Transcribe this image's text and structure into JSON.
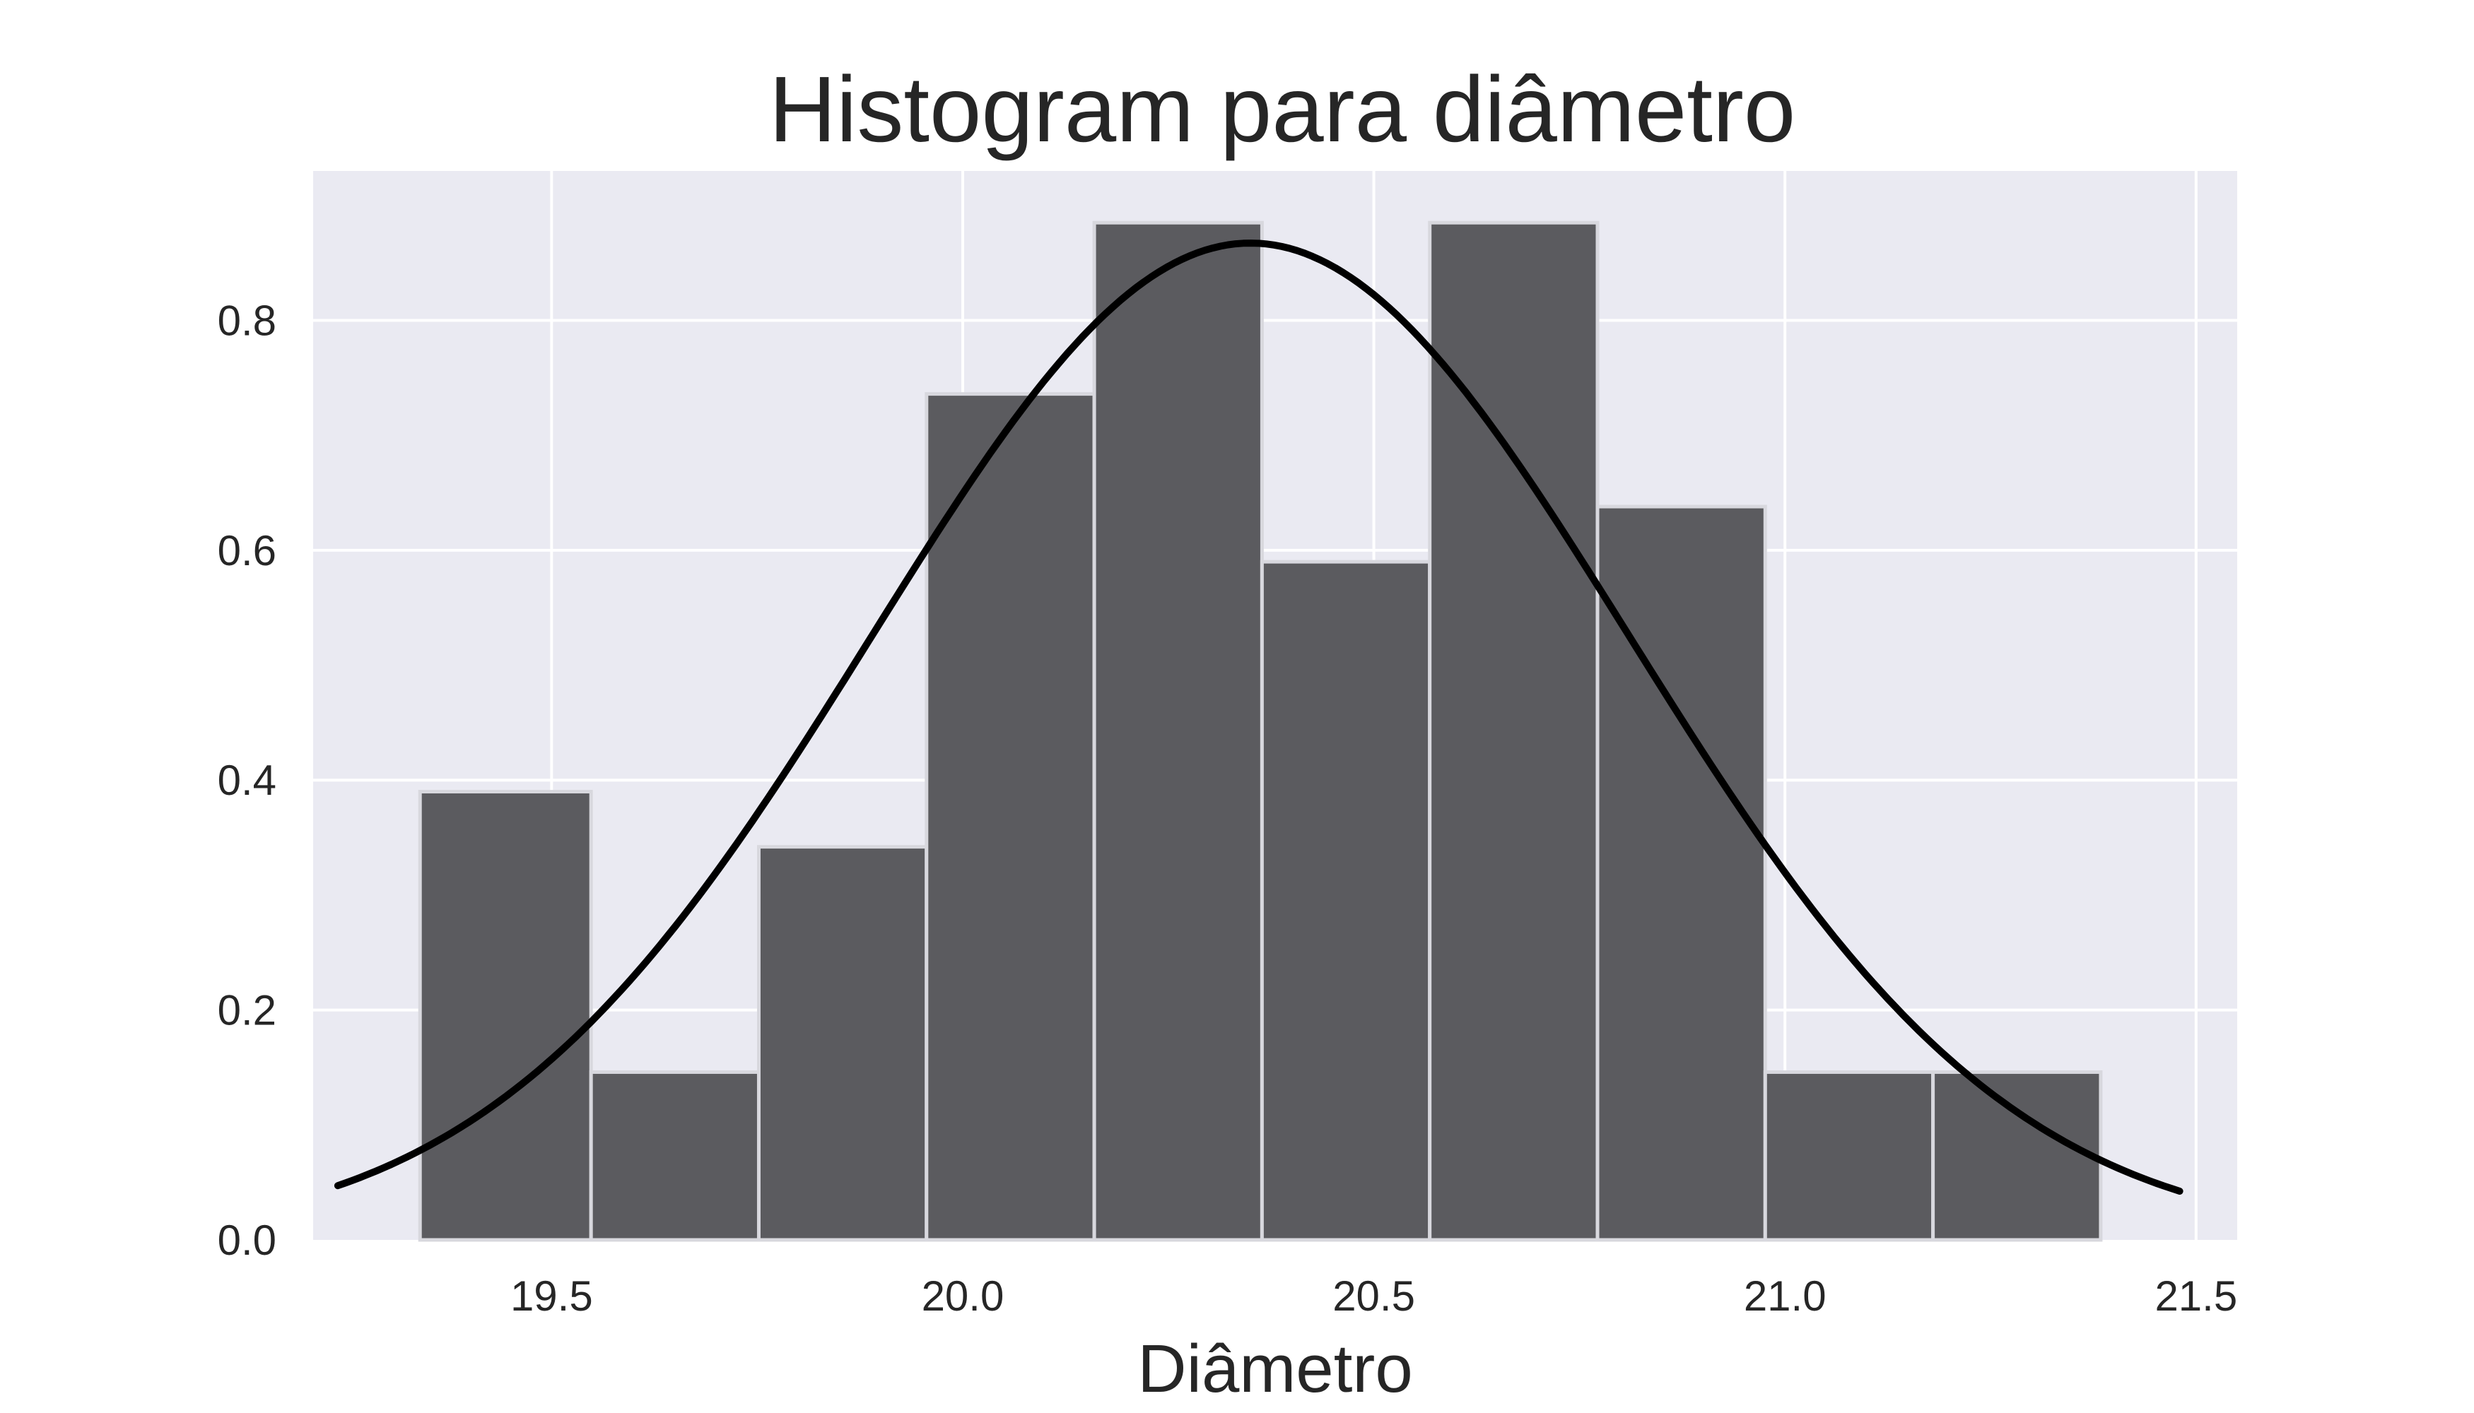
{
  "chart_data": {
    "type": "bar",
    "title": "Histogram para diâmetro",
    "xlabel": "Diâmetro",
    "ylabel": "",
    "xlim": [
      19.21,
      21.55
    ],
    "ylim": [
      0,
      0.93
    ],
    "xticks": [
      "19.5",
      "20.0",
      "20.5",
      "21.0",
      "21.5"
    ],
    "yticks": [
      "0.0",
      "0.2",
      "0.4",
      "0.6",
      "0.8"
    ],
    "grid": true,
    "bins": [
      {
        "start": 19.34,
        "end": 19.548,
        "value": 0.39
      },
      {
        "start": 19.548,
        "end": 19.752,
        "value": 0.146
      },
      {
        "start": 19.752,
        "end": 19.956,
        "value": 0.342
      },
      {
        "start": 19.956,
        "end": 20.16,
        "value": 0.736
      },
      {
        "start": 20.16,
        "end": 20.364,
        "value": 0.885
      },
      {
        "start": 20.364,
        "end": 20.568,
        "value": 0.59
      },
      {
        "start": 20.568,
        "end": 20.772,
        "value": 0.885
      },
      {
        "start": 20.772,
        "end": 20.976,
        "value": 0.638
      },
      {
        "start": 20.976,
        "end": 21.18,
        "value": 0.146
      },
      {
        "start": 21.18,
        "end": 21.384,
        "value": 0.146
      }
    ],
    "curve": {
      "type": "normal-pdf",
      "mean": 20.35,
      "std": 0.46,
      "x_range": [
        19.24,
        21.48
      ]
    },
    "colors": {
      "background": "#eaeaf2",
      "grid": "#ffffff",
      "bar_fill": "#5b5b5f",
      "bar_edge": "#d8d8de",
      "curve": "#000000"
    }
  }
}
